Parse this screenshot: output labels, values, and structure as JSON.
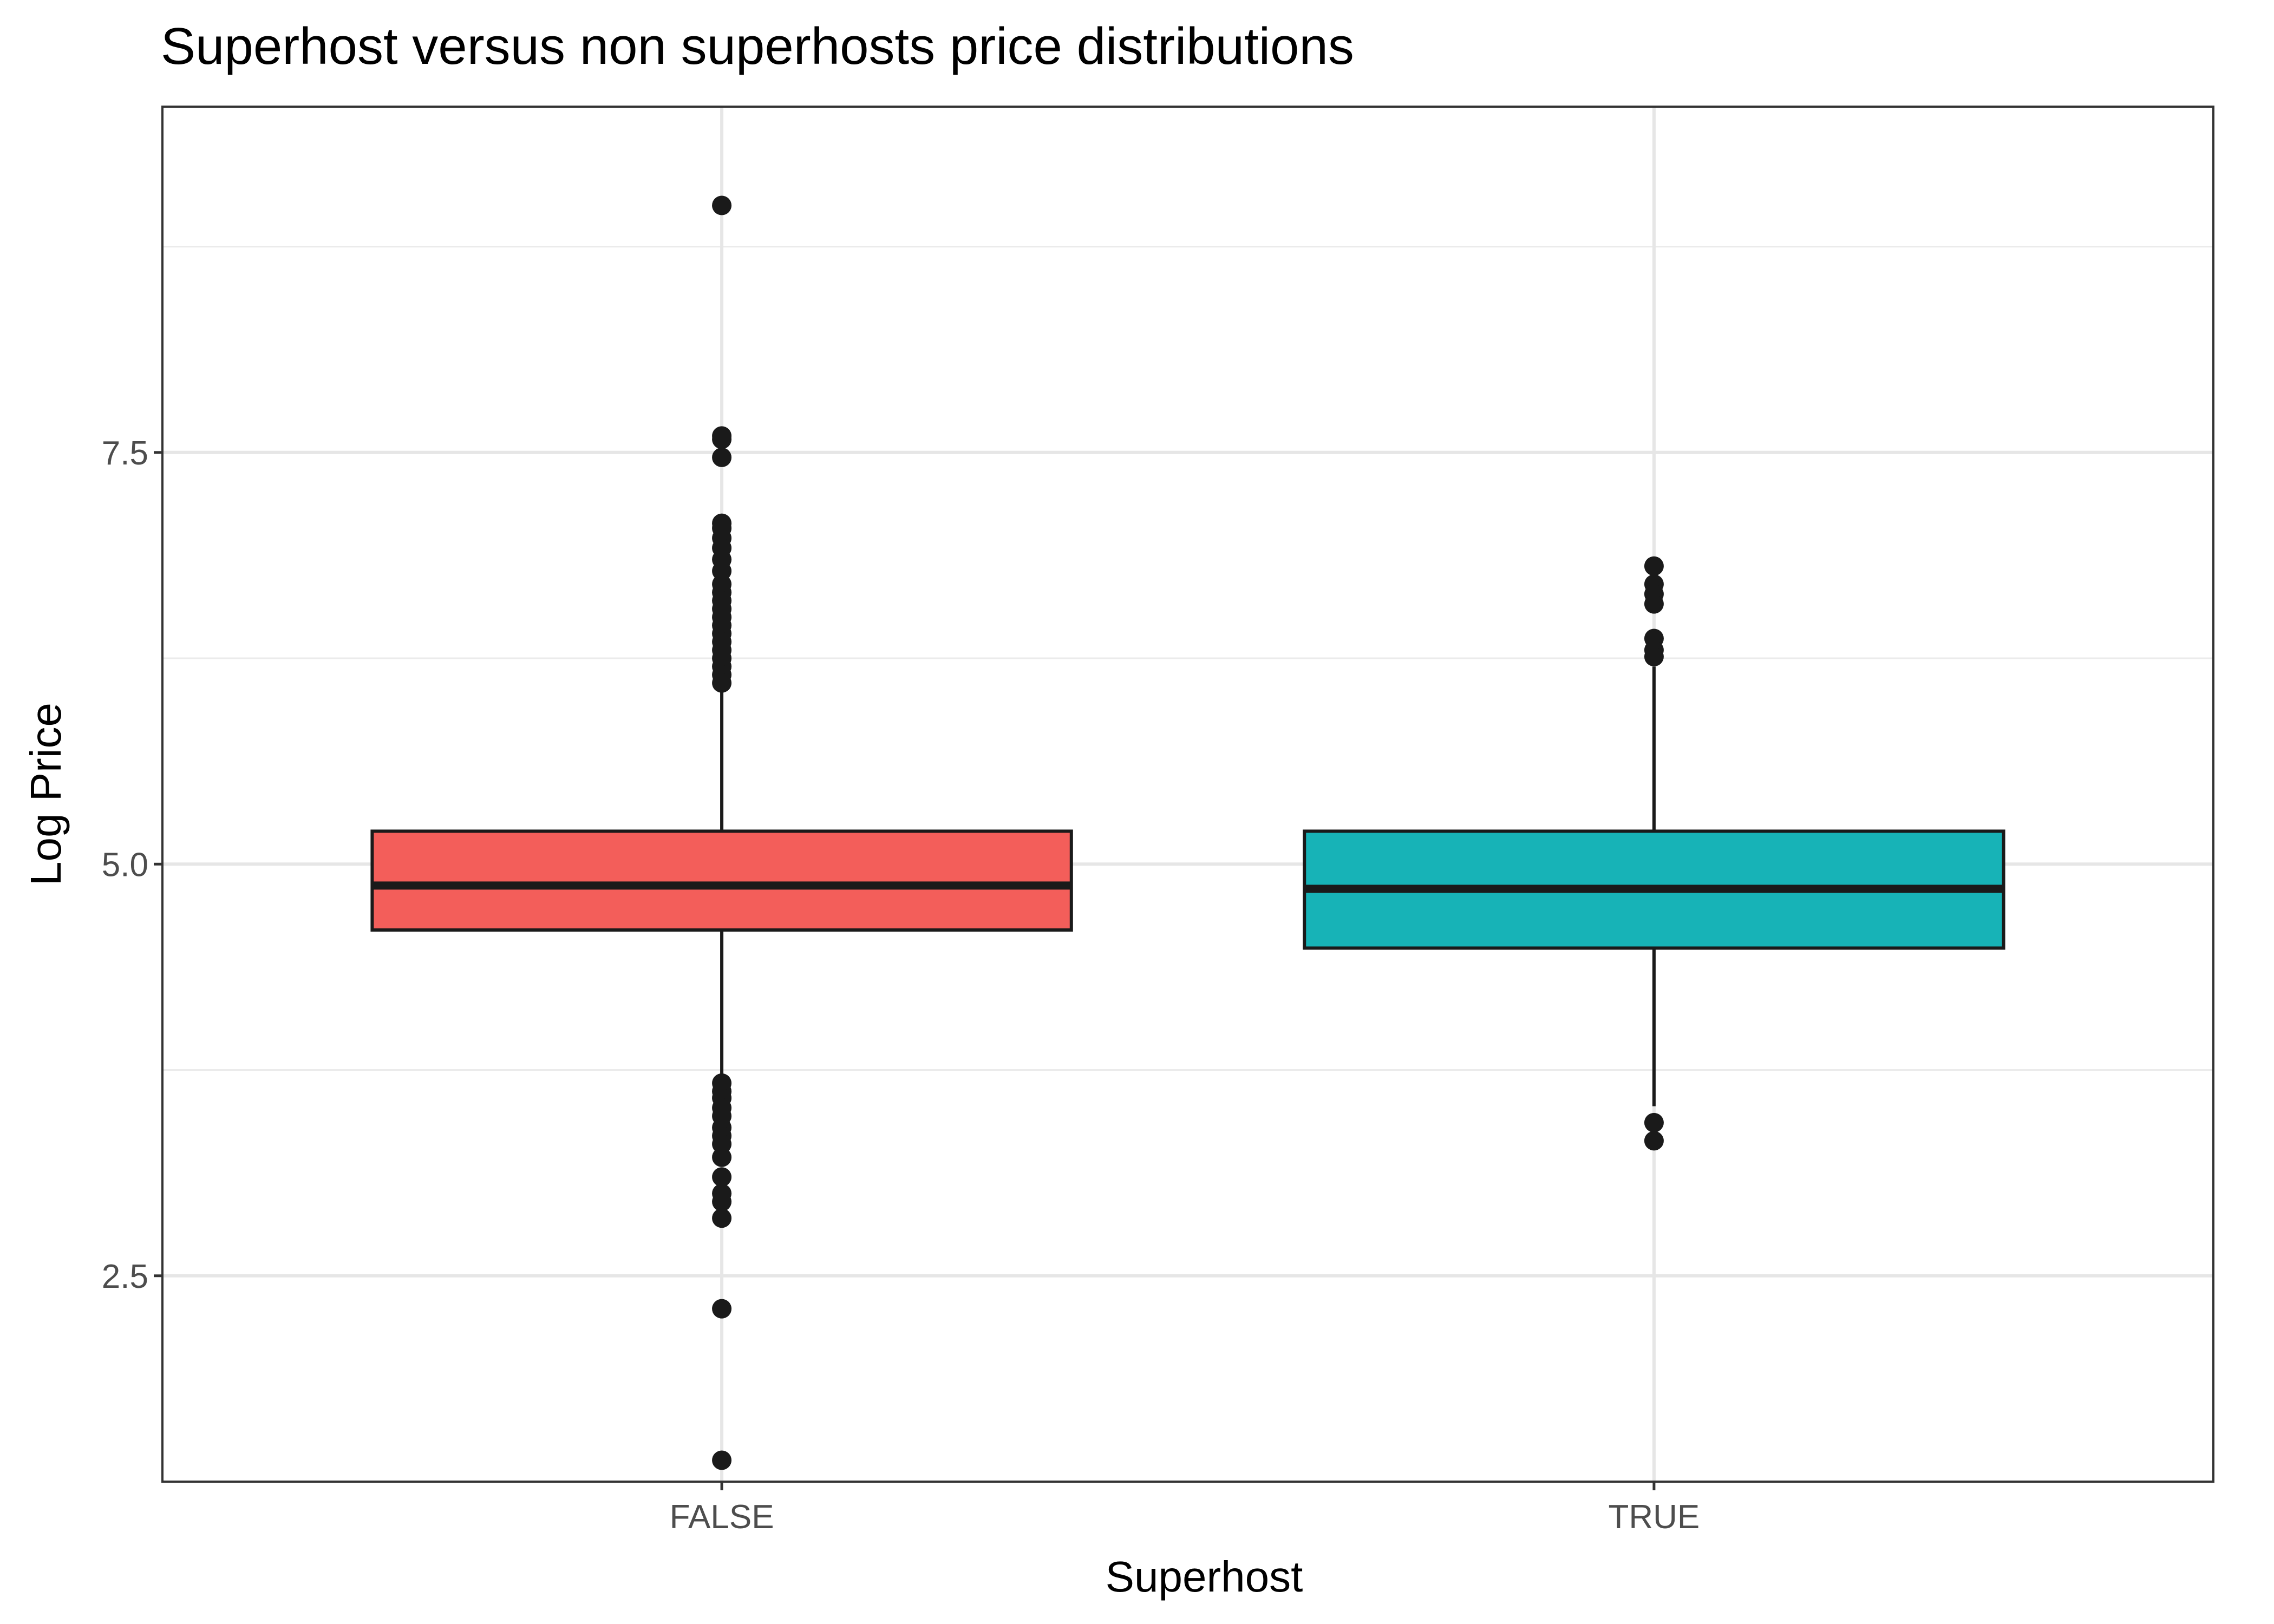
{
  "chart_data": {
    "type": "boxplot",
    "title": "Superhost versus non superhosts price distributions",
    "xlabel": "Superhost",
    "ylabel": "Log Price",
    "categories": [
      "FALSE",
      "TRUE"
    ],
    "ylim": [
      1.25,
      9.6
    ],
    "yticks": [
      2.5,
      5.0,
      7.5
    ],
    "ytick_labels": [
      "2.5",
      "5.0",
      "7.5"
    ],
    "grid": true,
    "legend": "none",
    "boxes": [
      {
        "category": "FALSE",
        "color": "#F35E5A",
        "q1": 4.6,
        "median": 4.87,
        "q3": 5.2,
        "whisker_low": 3.7,
        "whisker_high": 6.1,
        "outliers": [
          9.0,
          7.6,
          7.58,
          7.47,
          7.07,
          7.04,
          6.98,
          6.92,
          6.85,
          6.78,
          6.7,
          6.65,
          6.6,
          6.55,
          6.5,
          6.45,
          6.4,
          6.35,
          6.3,
          6.25,
          6.2,
          6.15,
          6.1,
          3.67,
          3.62,
          3.58,
          3.52,
          3.47,
          3.4,
          3.35,
          3.3,
          3.22,
          3.1,
          3.0,
          2.95,
          2.85,
          2.3,
          1.38
        ]
      },
      {
        "category": "TRUE",
        "color": "#17B3B7",
        "q1": 4.49,
        "median": 4.85,
        "q3": 5.2,
        "whisker_low": 3.53,
        "whisker_high": 6.2,
        "outliers": [
          6.81,
          6.7,
          6.64,
          6.58,
          6.37,
          6.3,
          6.26,
          3.43,
          3.32
        ]
      }
    ]
  }
}
